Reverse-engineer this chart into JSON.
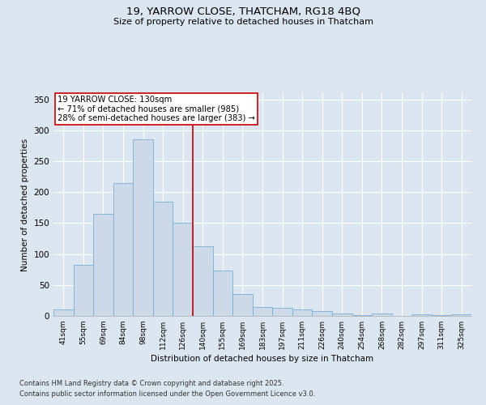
{
  "title1": "19, YARROW CLOSE, THATCHAM, RG18 4BQ",
  "title2": "Size of property relative to detached houses in Thatcham",
  "xlabel": "Distribution of detached houses by size in Thatcham",
  "ylabel": "Number of detached properties",
  "categories": [
    "41sqm",
    "55sqm",
    "69sqm",
    "84sqm",
    "98sqm",
    "112sqm",
    "126sqm",
    "140sqm",
    "155sqm",
    "169sqm",
    "183sqm",
    "197sqm",
    "211sqm",
    "226sqm",
    "240sqm",
    "254sqm",
    "268sqm",
    "282sqm",
    "297sqm",
    "311sqm",
    "325sqm"
  ],
  "bar_values": [
    10,
    82,
    165,
    215,
    285,
    185,
    150,
    113,
    73,
    35,
    15,
    13,
    10,
    8,
    4,
    1,
    4,
    0,
    3,
    1,
    2
  ],
  "bar_color": "#ccd9e8",
  "bar_edge_color": "#7aafd4",
  "property_line_x": 6.5,
  "annotation_text": "19 YARROW CLOSE: 130sqm\n← 71% of detached houses are smaller (985)\n28% of semi-detached houses are larger (383) →",
  "annotation_box_color": "#ffffff",
  "annotation_box_edge": "#cc0000",
  "line_color": "#cc0000",
  "ylim": [
    0,
    360
  ],
  "yticks": [
    0,
    50,
    100,
    150,
    200,
    250,
    300,
    350
  ],
  "footer1": "Contains HM Land Registry data © Crown copyright and database right 2025.",
  "footer2": "Contains public sector information licensed under the Open Government Licence v3.0.",
  "bg_color": "#dce6f0"
}
